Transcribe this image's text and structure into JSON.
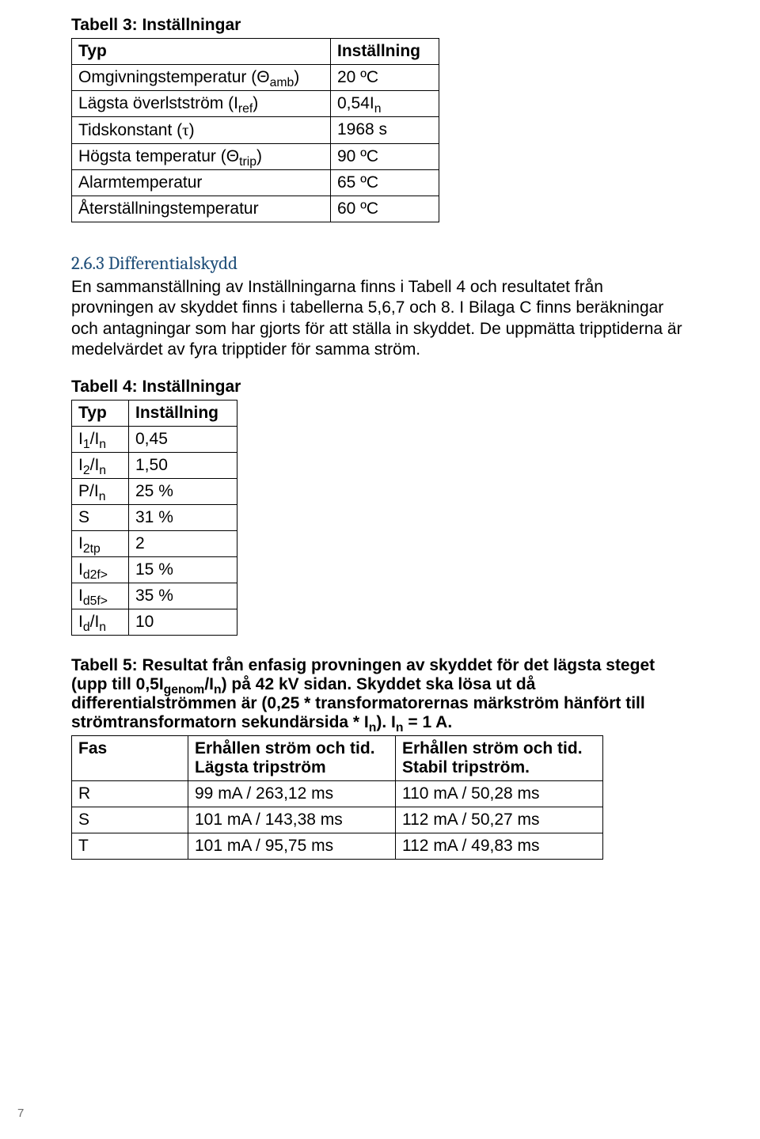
{
  "table3": {
    "caption": "Tabell 3: Inställningar",
    "header": {
      "c1": "Typ",
      "c2": "Inställning"
    },
    "rows": [
      {
        "c1": "Omgivningstemperatur (Θamb)",
        "c2": "20 ºC"
      },
      {
        "c1": "Lägsta överlstström (Iref)",
        "c2": "0,54In"
      },
      {
        "c1": "Tidskonstant (τ)",
        "c2": "1968 s"
      },
      {
        "c1": "Högsta temperatur (Θtrip)",
        "c2": "90 ºC"
      },
      {
        "c1": "Alarmtemperatur",
        "c2": "65 ºC"
      },
      {
        "c1": "Återställningstemperatur",
        "c2": "60 ºC"
      }
    ]
  },
  "section263": {
    "heading": "2.6.3 Differentialskydd",
    "paragraph": "En sammanställning av Inställningarna finns i Tabell 4 och resultatet från provningen av skyddet finns i tabellerna 5,6,7 och 8. I Bilaga C finns beräkningar och antagningar som har gjorts för att ställa in skyddet. De uppmätta tripptiderna är medelvärdet av fyra tripptider för samma ström."
  },
  "table4": {
    "caption": "Tabell 4: Inställningar",
    "header": {
      "c1": "Typ",
      "c2": "Inställning"
    },
    "rows": [
      {
        "c1_html": "I<sub>1</sub>/I<sub>n</sub>",
        "c2": "0,45"
      },
      {
        "c1_html": "I<sub>2</sub>/I<sub>n</sub>",
        "c2": "1,50"
      },
      {
        "c1_html": "P/I<sub>n</sub>",
        "c2": "25 %"
      },
      {
        "c1_html": "S",
        "c2": "31 %"
      },
      {
        "c1_html": "I<sub>2tp</sub>",
        "c2": "2"
      },
      {
        "c1_html": "I<sub>d2f></sub>",
        "c2": "15 %"
      },
      {
        "c1_html": "I<sub>d5f></sub>",
        "c2": "35 %"
      },
      {
        "c1_html": "I<sub>d</sub>/I<sub>n</sub>",
        "c2": "10"
      }
    ]
  },
  "table5": {
    "caption_html": "Tabell 5: Resultat från enfasig provningen av skyddet för det lägsta steget (upp till 0,5I<sub>genom</sub>/I<sub>n</sub>) på 42 kV sidan. Skyddet ska lösa ut då differentialströmmen är (0,25 * transformatorernas märkström hänfört till strömtransformatorn sekundärsida * I<sub>n</sub>). I<sub>n</sub> = 1 A.",
    "header": {
      "c1": "Fas",
      "c2a": "Erhållen ström och tid.",
      "c2b": "Lägsta tripström",
      "c3a": "Erhållen ström och tid.",
      "c3b": "Stabil tripström."
    },
    "rows": [
      {
        "c1": "R",
        "c2": "99 mA / 263,12 ms",
        "c3": "110 mA / 50,28 ms"
      },
      {
        "c1": "S",
        "c2": "101 mA / 143,38 ms",
        "c3": "112 mA / 50,27 ms"
      },
      {
        "c1": "T",
        "c2": "101 mA / 95,75 ms",
        "c3": "112 mA / 49,83 ms"
      }
    ]
  },
  "pageNumber": "7"
}
